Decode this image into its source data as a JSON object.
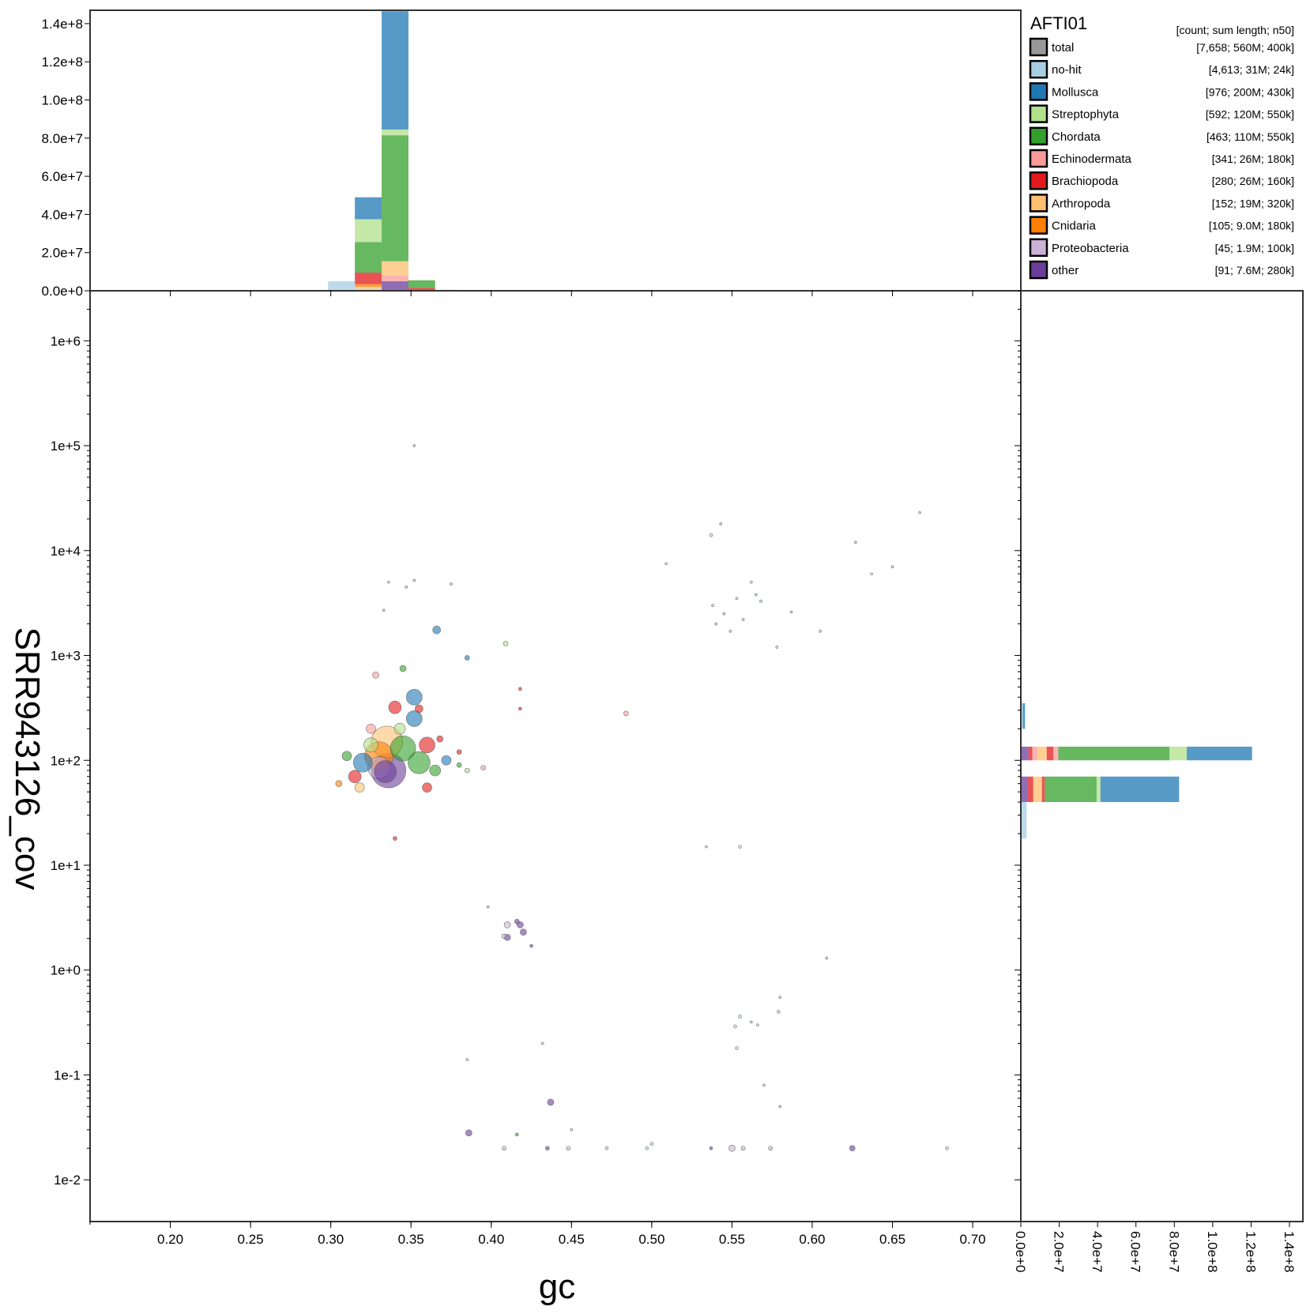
{
  "chart_data": {
    "type": "scatter",
    "title": "",
    "xlabel": "gc",
    "ylabel": "SRR943126_cov",
    "x_scale": "linear",
    "y_scale": "log",
    "xlim": [
      0.15,
      0.73
    ],
    "ylim": [
      0.004,
      3000000
    ],
    "x_ticks": [
      0.2,
      0.25,
      0.3,
      0.35,
      0.4,
      0.45,
      0.5,
      0.55,
      0.6,
      0.65,
      0.7
    ],
    "x_tick_labels": [
      "0.20",
      "0.25",
      "0.30",
      "0.35",
      "0.40",
      "0.45",
      "0.50",
      "0.55",
      "0.60",
      "0.65",
      "0.70"
    ],
    "y_ticks": [
      0.01,
      0.1,
      1,
      10,
      100,
      1000,
      10000,
      100000,
      1000000
    ],
    "y_tick_labels": [
      "1e-2",
      "1e-1",
      "1e+0",
      "1e+1",
      "1e+2",
      "1e+3",
      "1e+4",
      "1e+5",
      "1e+6"
    ],
    "top_hist": {
      "ylim": [
        0,
        147000000
      ],
      "y_ticks": [
        0,
        20000000,
        40000000,
        60000000,
        80000000,
        100000000,
        120000000,
        140000000
      ],
      "y_tick_labels": [
        "0.0e+0",
        "2.0e+7",
        "4.0e+7",
        "6.0e+7",
        "8.0e+7",
        "1.0e+8",
        "1.2e+8",
        "1.4e+8"
      ],
      "bin_width": 0.0167,
      "bins": [
        {
          "x0": 0.2983,
          "stack": [
            [
              "no-hit",
              5000000
            ]
          ]
        },
        {
          "x0": 0.315,
          "stack": [
            [
              "no-hit",
              1000000
            ],
            [
              "Arthropoda",
              1000000
            ],
            [
              "Cnidaria",
              1500000
            ],
            [
              "Brachiopoda",
              6000000
            ],
            [
              "Chordata",
              16000000
            ],
            [
              "Streptophyta",
              12000000
            ],
            [
              "Mollusca",
              11500000
            ]
          ]
        },
        {
          "x0": 0.3317,
          "stack": [
            [
              "other",
              5000000
            ],
            [
              "Echinodermata",
              3000000
            ],
            [
              "Arthropoda",
              7500000
            ],
            [
              "Chordata",
              66000000
            ],
            [
              "Streptophyta",
              3000000
            ],
            [
              "Mollusca",
              62000000
            ]
          ]
        },
        {
          "x0": 0.3483,
          "stack": [
            [
              "Brachiopoda",
              1500000
            ],
            [
              "Chordata",
              4000000
            ]
          ]
        },
        {
          "x0": 0.365,
          "stack": [
            [
              "no-hit",
              500000
            ]
          ]
        }
      ]
    },
    "right_hist": {
      "xlim": [
        0,
        147000000
      ],
      "x_ticks": [
        0,
        20000000,
        40000000,
        60000000,
        80000000,
        100000000,
        120000000,
        140000000
      ],
      "x_tick_labels": [
        "0.0e+0",
        "2.0e+7",
        "4.0e+7",
        "6.0e+7",
        "8.0e+7",
        "1.0e+8",
        "1.2e+8",
        "1.4e+8"
      ],
      "bins": [
        {
          "y0": 200,
          "y1": 350,
          "stack": [
            [
              "no-hit",
              1000000
            ],
            [
              "Mollusca",
              1200000
            ]
          ]
        },
        {
          "y0": 100,
          "y1": 135,
          "stack": [
            [
              "other",
              4000000
            ],
            [
              "Brachiopoda",
              2000000
            ],
            [
              "Echinodermata",
              2500000
            ],
            [
              "Arthropoda",
              5000000
            ],
            [
              "Brachiopoda",
              3500000
            ],
            [
              "Echinodermata",
              2500000
            ],
            [
              "Chordata",
              58000000
            ],
            [
              "Streptophyta",
              9000000
            ],
            [
              "Mollusca",
              34000000
            ]
          ]
        },
        {
          "y0": 40,
          "y1": 70,
          "stack": [
            [
              "other",
              3500000
            ],
            [
              "Brachiopoda",
              3000000
            ],
            [
              "Arthropoda",
              4500000
            ],
            [
              "Brachiopoda",
              1500000
            ],
            [
              "Chordata",
              27000000
            ],
            [
              "Streptophyta",
              2000000
            ],
            [
              "Mollusca",
              41000000
            ]
          ]
        },
        {
          "y0": 18,
          "y1": 40,
          "stack": [
            [
              "no-hit",
              3000000
            ]
          ]
        }
      ]
    },
    "legend": {
      "title": "AFTI01",
      "header": "[count; sum length; n50]",
      "placement": "top-right",
      "items": [
        {
          "label": "total",
          "stats": "[7,658; 560M; 400k]",
          "color": "#999999"
        },
        {
          "label": "no-hit",
          "stats": "[4,613; 31M; 24k]",
          "color": "#a6cee3"
        },
        {
          "label": "Mollusca",
          "stats": "[976; 200M; 430k]",
          "color": "#1f78b4"
        },
        {
          "label": "Streptophyta",
          "stats": "[592; 120M; 550k]",
          "color": "#b2df8a"
        },
        {
          "label": "Chordata",
          "stats": "[463; 110M; 550k]",
          "color": "#33a02c"
        },
        {
          "label": "Echinodermata",
          "stats": "[341; 26M; 180k]",
          "color": "#fb9a99"
        },
        {
          "label": "Brachiopoda",
          "stats": "[280; 26M; 160k]",
          "color": "#e31a1c"
        },
        {
          "label": "Arthropoda",
          "stats": "[152; 19M; 320k]",
          "color": "#fdbf6f"
        },
        {
          "label": "Cnidaria",
          "stats": "[105; 9.0M; 180k]",
          "color": "#ff7f00"
        },
        {
          "label": "Proteobacteria",
          "stats": "[45; 1.9M; 100k]",
          "color": "#cab2d6"
        },
        {
          "label": "other",
          "stats": "[91; 7.6M; 280k]",
          "color": "#6a3d9a"
        }
      ]
    },
    "points": [
      {
        "x": 0.352,
        "y": 100000,
        "r": 1.5,
        "t": "no-hit"
      },
      {
        "x": 0.667,
        "y": 23000,
        "r": 1.5,
        "t": "no-hit"
      },
      {
        "x": 0.537,
        "y": 14000,
        "r": 2,
        "t": "no-hit"
      },
      {
        "x": 0.543,
        "y": 18000,
        "r": 1.5,
        "t": "no-hit"
      },
      {
        "x": 0.627,
        "y": 12000,
        "r": 1.5,
        "t": "no-hit"
      },
      {
        "x": 0.65,
        "y": 7000,
        "r": 1.5,
        "t": "no-hit"
      },
      {
        "x": 0.637,
        "y": 6000,
        "r": 1.5,
        "t": "no-hit"
      },
      {
        "x": 0.509,
        "y": 7500,
        "r": 1.5,
        "t": "no-hit"
      },
      {
        "x": 0.562,
        "y": 5000,
        "r": 1.5,
        "t": "no-hit"
      },
      {
        "x": 0.553,
        "y": 3500,
        "r": 1.5,
        "t": "no-hit"
      },
      {
        "x": 0.545,
        "y": 2500,
        "r": 1.5,
        "t": "no-hit"
      },
      {
        "x": 0.565,
        "y": 3800,
        "r": 1.5,
        "t": "no-hit"
      },
      {
        "x": 0.568,
        "y": 3300,
        "r": 1.5,
        "t": "no-hit"
      },
      {
        "x": 0.54,
        "y": 2000,
        "r": 1.5,
        "t": "no-hit"
      },
      {
        "x": 0.549,
        "y": 1700,
        "r": 1.5,
        "t": "no-hit"
      },
      {
        "x": 0.538,
        "y": 3000,
        "r": 1.5,
        "t": "no-hit"
      },
      {
        "x": 0.557,
        "y": 2200,
        "r": 1.5,
        "t": "no-hit"
      },
      {
        "x": 0.587,
        "y": 2600,
        "r": 1.5,
        "t": "no-hit"
      },
      {
        "x": 0.578,
        "y": 1200,
        "r": 1.5,
        "t": "no-hit"
      },
      {
        "x": 0.605,
        "y": 1700,
        "r": 1.5,
        "t": "no-hit"
      },
      {
        "x": 0.336,
        "y": 5000,
        "r": 1.5,
        "t": "no-hit"
      },
      {
        "x": 0.352,
        "y": 5200,
        "r": 1.5,
        "t": "no-hit"
      },
      {
        "x": 0.347,
        "y": 4500,
        "r": 1.5,
        "t": "no-hit"
      },
      {
        "x": 0.375,
        "y": 4800,
        "r": 1.5,
        "t": "no-hit"
      },
      {
        "x": 0.333,
        "y": 2700,
        "r": 1.5,
        "t": "no-hit"
      },
      {
        "x": 0.366,
        "y": 1750,
        "r": 5,
        "t": "Mollusca"
      },
      {
        "x": 0.385,
        "y": 950,
        "r": 3,
        "t": "Mollusca"
      },
      {
        "x": 0.409,
        "y": 1300,
        "r": 3,
        "t": "Streptophyta"
      },
      {
        "x": 0.352,
        "y": 400,
        "r": 10,
        "t": "Mollusca"
      },
      {
        "x": 0.345,
        "y": 750,
        "r": 4,
        "t": "Chordata"
      },
      {
        "x": 0.328,
        "y": 650,
        "r": 4,
        "t": "Echinodermata"
      },
      {
        "x": 0.34,
        "y": 320,
        "r": 8,
        "t": "Brachiopoda"
      },
      {
        "x": 0.355,
        "y": 310,
        "r": 5,
        "t": "Brachiopoda"
      },
      {
        "x": 0.418,
        "y": 310,
        "r": 2,
        "t": "Brachiopoda"
      },
      {
        "x": 0.418,
        "y": 480,
        "r": 2,
        "t": "Brachiopoda"
      },
      {
        "x": 0.484,
        "y": 280,
        "r": 3,
        "t": "Echinodermata"
      },
      {
        "x": 0.352,
        "y": 250,
        "r": 10,
        "t": "Mollusca"
      },
      {
        "x": 0.335,
        "y": 150,
        "r": 20,
        "t": "Arthropoda"
      },
      {
        "x": 0.345,
        "y": 130,
        "r": 16,
        "t": "Chordata"
      },
      {
        "x": 0.33,
        "y": 110,
        "r": 18,
        "t": "Cnidaria"
      },
      {
        "x": 0.355,
        "y": 95,
        "r": 14,
        "t": "Chordata"
      },
      {
        "x": 0.32,
        "y": 95,
        "r": 12,
        "t": "Mollusca"
      },
      {
        "x": 0.36,
        "y": 140,
        "r": 10,
        "t": "Brachiopoda"
      },
      {
        "x": 0.325,
        "y": 140,
        "r": 9,
        "t": "Streptophyta"
      },
      {
        "x": 0.315,
        "y": 70,
        "r": 8,
        "t": "Brachiopoda"
      },
      {
        "x": 0.365,
        "y": 80,
        "r": 7,
        "t": "Chordata"
      },
      {
        "x": 0.372,
        "y": 100,
        "r": 6,
        "t": "Mollusca"
      },
      {
        "x": 0.31,
        "y": 110,
        "r": 6,
        "t": "Chordata"
      },
      {
        "x": 0.36,
        "y": 55,
        "r": 6,
        "t": "Brachiopoda"
      },
      {
        "x": 0.318,
        "y": 55,
        "r": 6,
        "t": "Arthropoda"
      },
      {
        "x": 0.343,
        "y": 200,
        "r": 7,
        "t": "Streptophyta"
      },
      {
        "x": 0.325,
        "y": 200,
        "r": 6,
        "t": "Echinodermata"
      },
      {
        "x": 0.33,
        "y": 85,
        "r": 14,
        "t": "Proteobacteria"
      },
      {
        "x": 0.336,
        "y": 80,
        "r": 22,
        "t": "other"
      },
      {
        "x": 0.334,
        "y": 78,
        "r": 14,
        "t": "other"
      },
      {
        "x": 0.368,
        "y": 160,
        "r": 4,
        "t": "Brachiopoda"
      },
      {
        "x": 0.305,
        "y": 60,
        "r": 4,
        "t": "Cnidaria"
      },
      {
        "x": 0.38,
        "y": 90,
        "r": 3,
        "t": "Chordata"
      },
      {
        "x": 0.38,
        "y": 120,
        "r": 3,
        "t": "Brachiopoda"
      },
      {
        "x": 0.385,
        "y": 80,
        "r": 3,
        "t": "Streptophyta"
      },
      {
        "x": 0.395,
        "y": 85,
        "r": 3,
        "t": "Echinodermata"
      },
      {
        "x": 0.34,
        "y": 18,
        "r": 2.5,
        "t": "Brachiopoda"
      },
      {
        "x": 0.41,
        "y": 2.7,
        "r": 4,
        "t": "Proteobacteria"
      },
      {
        "x": 0.418,
        "y": 2.7,
        "r": 4,
        "t": "other"
      },
      {
        "x": 0.42,
        "y": 2.3,
        "r": 4,
        "t": "other"
      },
      {
        "x": 0.41,
        "y": 2.05,
        "r": 4,
        "t": "other"
      },
      {
        "x": 0.408,
        "y": 2.1,
        "r": 3,
        "t": "Proteobacteria"
      },
      {
        "x": 0.416,
        "y": 2.9,
        "r": 3,
        "t": "other"
      },
      {
        "x": 0.425,
        "y": 1.7,
        "r": 2,
        "t": "other"
      },
      {
        "x": 0.398,
        "y": 4.0,
        "r": 1.5,
        "t": "no-hit"
      },
      {
        "x": 0.555,
        "y": 15,
        "r": 2,
        "t": "no-hit"
      },
      {
        "x": 0.534,
        "y": 15,
        "r": 1.5,
        "t": "no-hit"
      },
      {
        "x": 0.609,
        "y": 1.3,
        "r": 1.5,
        "t": "no-hit"
      },
      {
        "x": 0.58,
        "y": 0.55,
        "r": 1.5,
        "t": "no-hit"
      },
      {
        "x": 0.579,
        "y": 0.4,
        "r": 2,
        "t": "no-hit"
      },
      {
        "x": 0.555,
        "y": 0.36,
        "r": 2,
        "t": "no-hit"
      },
      {
        "x": 0.552,
        "y": 0.29,
        "r": 2,
        "t": "no-hit"
      },
      {
        "x": 0.562,
        "y": 0.32,
        "r": 1.5,
        "t": "no-hit"
      },
      {
        "x": 0.566,
        "y": 0.3,
        "r": 1.5,
        "t": "no-hit"
      },
      {
        "x": 0.553,
        "y": 0.18,
        "r": 2,
        "t": "no-hit"
      },
      {
        "x": 0.57,
        "y": 0.08,
        "r": 1.5,
        "t": "no-hit"
      },
      {
        "x": 0.58,
        "y": 0.05,
        "r": 1.5,
        "t": "no-hit"
      },
      {
        "x": 0.437,
        "y": 0.055,
        "r": 4,
        "t": "other"
      },
      {
        "x": 0.386,
        "y": 0.028,
        "r": 4,
        "t": "other"
      },
      {
        "x": 0.416,
        "y": 0.027,
        "r": 2,
        "t": "Chordata"
      },
      {
        "x": 0.385,
        "y": 0.14,
        "r": 1.5,
        "t": "no-hit"
      },
      {
        "x": 0.432,
        "y": 0.2,
        "r": 1.5,
        "t": "no-hit"
      },
      {
        "x": 0.5,
        "y": 0.022,
        "r": 2,
        "t": "no-hit"
      },
      {
        "x": 0.45,
        "y": 0.03,
        "r": 1.5,
        "t": "no-hit"
      },
      {
        "x": 0.55,
        "y": 0.02,
        "r": 4,
        "t": "Proteobacteria"
      },
      {
        "x": 0.625,
        "y": 0.02,
        "r": 3.5,
        "t": "other"
      },
      {
        "x": 0.557,
        "y": 0.02,
        "r": 2.5,
        "t": "Proteobacteria"
      },
      {
        "x": 0.574,
        "y": 0.02,
        "r": 2.5,
        "t": "Proteobacteria"
      },
      {
        "x": 0.435,
        "y": 0.02,
        "r": 2.5,
        "t": "other"
      },
      {
        "x": 0.448,
        "y": 0.02,
        "r": 2.5,
        "t": "Proteobacteria"
      },
      {
        "x": 0.408,
        "y": 0.02,
        "r": 2.5,
        "t": "Proteobacteria"
      },
      {
        "x": 0.537,
        "y": 0.02,
        "r": 2,
        "t": "other"
      },
      {
        "x": 0.684,
        "y": 0.02,
        "r": 2,
        "t": "no-hit"
      },
      {
        "x": 0.497,
        "y": 0.02,
        "r": 2,
        "t": "no-hit"
      },
      {
        "x": 0.472,
        "y": 0.02,
        "r": 2,
        "t": "no-hit"
      }
    ]
  }
}
